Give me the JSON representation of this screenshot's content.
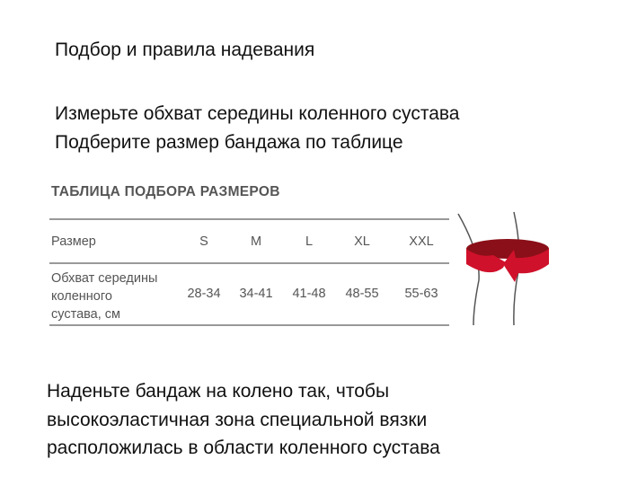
{
  "heading": "Подбор и правила надевания",
  "instructions": [
    "Измерьте обхват середины коленного сустава",
    "Подберите размер бандажа по таблице"
  ],
  "table": {
    "title": "ТАБЛИЦА ПОДБОРА РАЗМЕРОВ",
    "row1_label": "Размер",
    "sizes": [
      "S",
      "M",
      "L",
      "XL",
      "XXL"
    ],
    "row2_label": [
      "Обхват середины",
      "коленного",
      "сустава, см"
    ],
    "ranges": [
      "28-34",
      "34-41",
      "41-48",
      "48-55",
      "55-63"
    ]
  },
  "illustration": {
    "icon": "knee-measurement-icon",
    "accent": "#d0112b"
  },
  "footer": [
    "Наденьте бандаж на колено так, чтобы",
    "высокоэластичная зона специальной вязки",
    "расположилась в области коленного сустава"
  ]
}
